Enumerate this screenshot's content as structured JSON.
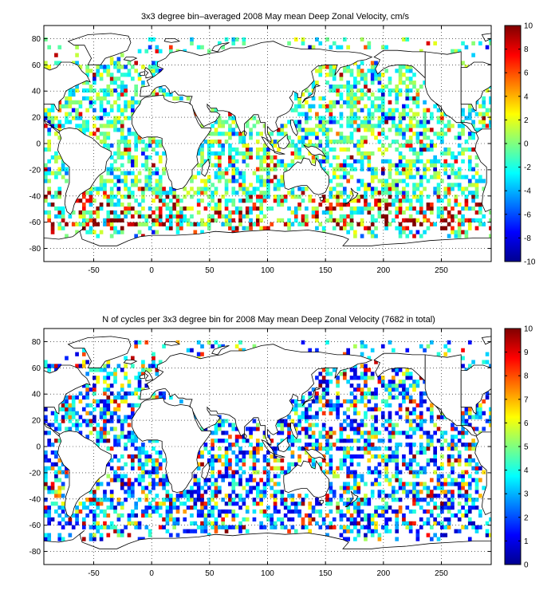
{
  "chart_data": [
    {
      "type": "heatmap",
      "title": "3x3 degree bin–averaged 2008 May mean Deep Zonal Velocity, cm/s",
      "xlabel": "",
      "ylabel": "",
      "xlim": [
        -93,
        293
      ],
      "ylim": [
        -90,
        90
      ],
      "x_ticks": [
        -50,
        0,
        50,
        100,
        150,
        200,
        250
      ],
      "y_ticks": [
        80,
        60,
        40,
        20,
        0,
        -20,
        -40,
        -60,
        -80
      ],
      "grid": true,
      "bin_size_deg": 3,
      "colorbar": {
        "placement": "right",
        "range": [
          -10,
          10
        ],
        "ticks": [
          10,
          8,
          6,
          4,
          2,
          0,
          -2,
          -4,
          -6,
          -8,
          -10
        ],
        "colormap": "jet"
      },
      "seed": 11,
      "density": 0.52,
      "distribution": "velocity"
    },
    {
      "type": "heatmap",
      "title": "N of cycles per 3x3 degree bin for 2008 May mean Deep Zonal Velocity (7682 in total)",
      "xlabel": "",
      "ylabel": "",
      "xlim": [
        -93,
        293
      ],
      "ylim": [
        -90,
        90
      ],
      "x_ticks": [
        -50,
        0,
        50,
        100,
        150,
        200,
        250
      ],
      "y_ticks": [
        80,
        60,
        40,
        20,
        0,
        -20,
        -40,
        -60,
        -80
      ],
      "grid": true,
      "bin_size_deg": 3,
      "colorbar": {
        "placement": "right",
        "range": [
          0,
          10
        ],
        "ticks": [
          10,
          9,
          8,
          7,
          6,
          5,
          4,
          3,
          2,
          1,
          0
        ],
        "colormap": "jet"
      },
      "seed": 29,
      "density": 0.5,
      "distribution": "counts"
    }
  ]
}
